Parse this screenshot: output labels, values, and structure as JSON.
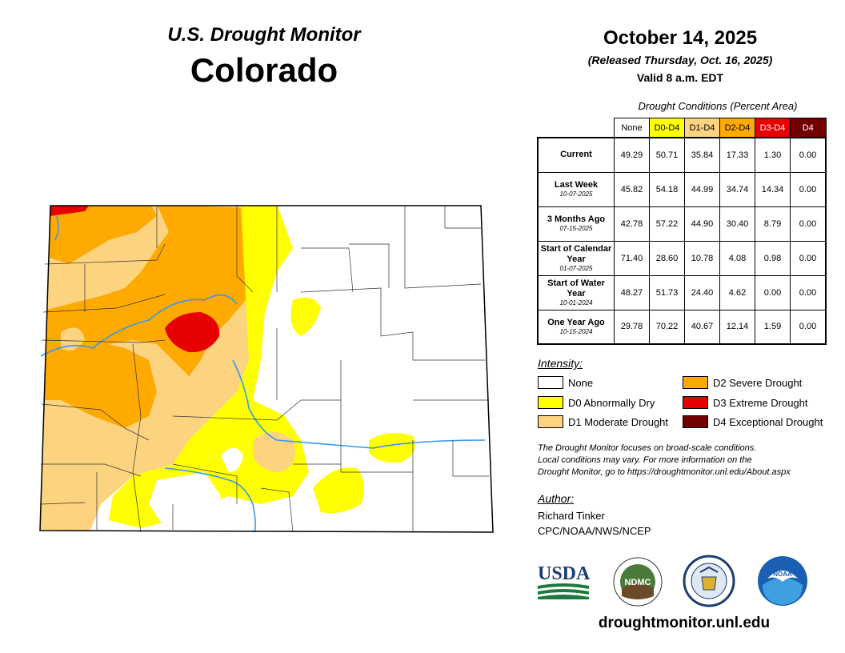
{
  "header": {
    "monitor_title": "U.S. Drought Monitor",
    "state_name": "Colorado",
    "date": "October 14, 2025",
    "released": "(Released Thursday, Oct. 16, 2025)",
    "valid": "Valid 8 a.m. EDT"
  },
  "table": {
    "caption": "Drought Conditions (Percent Area)",
    "columns": [
      "None",
      "D0-D4",
      "D1-D4",
      "D2-D4",
      "D3-D4",
      "D4"
    ],
    "column_colors": [
      "#ffffff",
      "#ffff00",
      "#fcd37f",
      "#ffaa00",
      "#e60000",
      "#730000"
    ],
    "rows": [
      {
        "label": "Current",
        "sub": "",
        "values": [
          "49.29",
          "50.71",
          "35.84",
          "17.33",
          "1.30",
          "0.00"
        ]
      },
      {
        "label": "Last Week",
        "sub": "10-07-2025",
        "values": [
          "45.82",
          "54.18",
          "44.99",
          "34.74",
          "14.34",
          "0.00"
        ]
      },
      {
        "label": "3 Months Ago",
        "sub": "07-15-2025",
        "values": [
          "42.78",
          "57.22",
          "44.90",
          "30.40",
          "8.79",
          "0.00"
        ]
      },
      {
        "label": "Start of Calendar Year",
        "sub": "01-07-2025",
        "values": [
          "71.40",
          "28.60",
          "10.78",
          "4.08",
          "0.98",
          "0.00"
        ]
      },
      {
        "label": "Start of Water Year",
        "sub": "10-01-2024",
        "values": [
          "48.27",
          "51.73",
          "24.40",
          "4.62",
          "0.00",
          "0.00"
        ]
      },
      {
        "label": "One Year Ago",
        "sub": "10-15-2024",
        "values": [
          "29.78",
          "70.22",
          "40.67",
          "12.14",
          "1.59",
          "0.00"
        ]
      }
    ]
  },
  "legend": {
    "title": "Intensity:",
    "items": [
      {
        "label": "None",
        "color": "#ffffff"
      },
      {
        "label": "D0 Abnormally Dry",
        "color": "#ffff00"
      },
      {
        "label": "D1 Moderate Drought",
        "color": "#fcd37f"
      },
      {
        "label": "D2 Severe Drought",
        "color": "#ffaa00"
      },
      {
        "label": "D3 Extreme Drought",
        "color": "#e60000"
      },
      {
        "label": "D4 Exceptional Drought",
        "color": "#730000"
      }
    ]
  },
  "disclaimer": {
    "line1": "The Drought Monitor focuses on broad-scale conditions.",
    "line2": "Local conditions may vary. For more information on the",
    "line3": "Drought Monitor, go to https://droughtmonitor.unl.edu/About.aspx"
  },
  "author": {
    "label": "Author:",
    "name": "Richard Tinker",
    "org": "CPC/NOAA/NWS/NCEP"
  },
  "logos": {
    "usda": "USDA",
    "ndmc": "NDMC",
    "noaa": "NOAA"
  },
  "website": "droughtmonitor.unl.edu",
  "colors": {
    "river": "#3399ee",
    "county_line": "#333333"
  }
}
